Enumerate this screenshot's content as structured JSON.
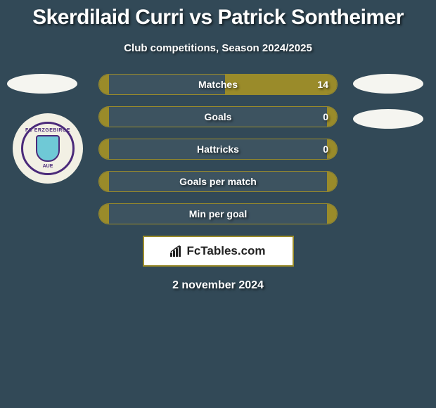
{
  "title": "Skerdilaid Curri vs Patrick Sontheimer",
  "subtitle": "Club competitions, Season 2024/2025",
  "date": "2 november 2024",
  "brand": "FcTables.com",
  "colors": {
    "background": "#324957",
    "accent": "#9a8b2a",
    "ellipse": "#f5f5f0",
    "text": "#ffffff",
    "logo_purple": "#4b2a7a",
    "logo_cyan": "#6fc9d6",
    "brand_box_bg": "#ffffff"
  },
  "club_logo": {
    "top_text": "FC ERZGEBIRGE",
    "bottom_text": "AUE"
  },
  "stats": [
    {
      "label": "Matches",
      "left_value": "",
      "right_value": "14",
      "fill_left_pct": 4,
      "fill_right_pct": 47
    },
    {
      "label": "Goals",
      "left_value": "",
      "right_value": "0",
      "fill_left_pct": 4,
      "fill_right_pct": 4
    },
    {
      "label": "Hattricks",
      "left_value": "",
      "right_value": "0",
      "fill_left_pct": 4,
      "fill_right_pct": 4
    },
    {
      "label": "Goals per match",
      "left_value": "",
      "right_value": "",
      "fill_left_pct": 4,
      "fill_right_pct": 4
    },
    {
      "label": "Min per goal",
      "left_value": "",
      "right_value": "",
      "fill_left_pct": 4,
      "fill_right_pct": 4
    }
  ]
}
